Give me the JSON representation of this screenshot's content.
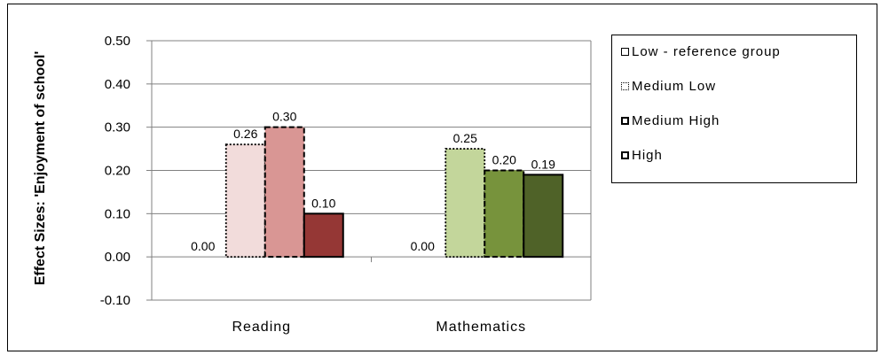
{
  "chart_data": {
    "type": "bar",
    "ylabel": "Effect Sizes: 'Enjoyment of school'",
    "xlabel": "",
    "ylim": [
      -0.1,
      0.5
    ],
    "yticks": [
      "-0.10",
      "0.00",
      "0.10",
      "0.20",
      "0.30",
      "0.40",
      "0.50"
    ],
    "grid": true,
    "legend_position": "right",
    "categories": [
      "Reading",
      "Mathematics"
    ],
    "series": [
      {
        "name": "Low - reference group",
        "values": [
          0.0,
          0.0
        ],
        "labels": [
          "0.00",
          "0.00"
        ]
      },
      {
        "name": "Medium Low",
        "values": [
          0.26,
          0.25
        ],
        "labels": [
          "0.26",
          "0.25"
        ]
      },
      {
        "name": "Medium High",
        "values": [
          0.3,
          0.2
        ],
        "labels": [
          "0.30",
          "0.20"
        ]
      },
      {
        "name": "High",
        "values": [
          0.1,
          0.19
        ],
        "labels": [
          "0.10",
          "0.19"
        ]
      }
    ],
    "colors": {
      "Reading": [
        "#ffffff",
        "#f2dcdb",
        "#d99694",
        "#953735"
      ],
      "Mathematics": [
        "#ffffff",
        "#c3d69b",
        "#77933c",
        "#4f6228"
      ]
    },
    "legend": [
      {
        "label": "Low - reference group",
        "border": "solid"
      },
      {
        "label": "Medium Low",
        "border": "dotted"
      },
      {
        "label": "Medium High",
        "border": "dashed"
      },
      {
        "label": "High",
        "border": "solid-thick"
      }
    ]
  }
}
